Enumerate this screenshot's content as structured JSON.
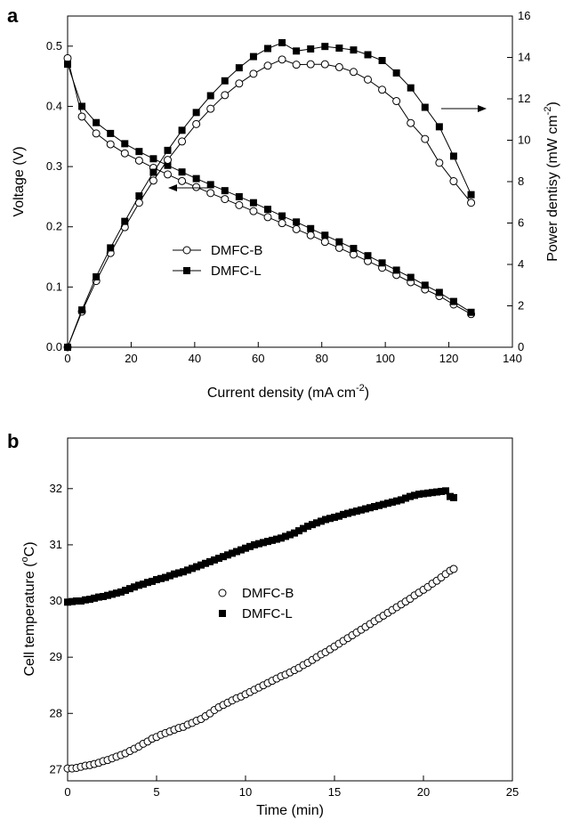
{
  "chart_data": [
    {
      "panel_label": "a",
      "type": "line",
      "xlabel": "Current density (mA cm",
      "xlabel_sup": "-2",
      "xlabel_tail": ")",
      "ylabel": "Voltage (V)",
      "y2label": "Power dentisy (mW cm",
      "y2label_sup": "-2",
      "y2label_tail": ")",
      "xlim": [
        0,
        140
      ],
      "ylim": [
        0,
        0.55
      ],
      "y2lim": [
        0,
        16
      ],
      "x_ticks": [
        "0",
        "20",
        "40",
        "60",
        "80",
        "100",
        "120",
        "140"
      ],
      "y_ticks": [
        "0.0",
        "0.1",
        "0.2",
        "0.3",
        "0.4",
        "0.5"
      ],
      "y2_ticks": [
        "0",
        "2",
        "4",
        "6",
        "8",
        "10",
        "12",
        "14",
        "16"
      ],
      "legend": [
        {
          "name": "DMFC-B",
          "marker": "open-circle"
        },
        {
          "name": "DMFC-L",
          "marker": "filled-square"
        }
      ],
      "legend_position": "center-left",
      "series": [
        {
          "name": "DMFC-B",
          "quantity": "voltage",
          "axis": "left",
          "marker": "open-circle",
          "x": [
            0,
            4.5,
            9,
            13.5,
            18,
            22.5,
            27,
            31.5,
            36,
            40.5,
            45,
            49.5,
            54,
            58.5,
            63,
            67.5,
            72,
            76.5,
            81,
            85.5,
            90,
            94.5,
            99,
            103.5,
            108,
            112.5,
            117,
            121.5,
            127
          ],
          "values": [
            0.48,
            0.383,
            0.355,
            0.337,
            0.322,
            0.31,
            0.298,
            0.287,
            0.276,
            0.266,
            0.256,
            0.246,
            0.236,
            0.226,
            0.216,
            0.206,
            0.196,
            0.186,
            0.175,
            0.165,
            0.154,
            0.143,
            0.132,
            0.12,
            0.108,
            0.096,
            0.085,
            0.071,
            0.055
          ]
        },
        {
          "name": "DMFC-L",
          "quantity": "voltage",
          "axis": "left",
          "marker": "filled-square",
          "x": [
            0,
            4.5,
            9,
            13.5,
            18,
            22.5,
            27,
            31.5,
            36,
            40.5,
            45,
            49.5,
            54,
            58.5,
            63,
            67.5,
            72,
            76.5,
            81,
            85.5,
            90,
            94.5,
            99,
            103.5,
            108,
            112.5,
            117,
            121.5,
            127
          ],
          "values": [
            0.47,
            0.4,
            0.373,
            0.355,
            0.338,
            0.325,
            0.313,
            0.302,
            0.291,
            0.28,
            0.27,
            0.26,
            0.25,
            0.24,
            0.229,
            0.218,
            0.208,
            0.197,
            0.186,
            0.175,
            0.164,
            0.152,
            0.14,
            0.128,
            0.116,
            0.103,
            0.091,
            0.076,
            0.058
          ]
        },
        {
          "name": "DMFC-B",
          "quantity": "power density",
          "axis": "right",
          "marker": "open-circle",
          "x": [
            0,
            4.5,
            9,
            13.5,
            18,
            22.5,
            27,
            31.5,
            36,
            40.5,
            45,
            49.5,
            54,
            58.5,
            63,
            67.5,
            72,
            76.5,
            81,
            85.5,
            90,
            94.5,
            99,
            103.5,
            108,
            112.5,
            117,
            121.5,
            127
          ],
          "values": [
            0,
            1.72,
            3.2,
            4.55,
            5.8,
            6.98,
            8.05,
            9.05,
            9.94,
            10.78,
            11.52,
            12.18,
            12.74,
            13.21,
            13.6,
            13.9,
            13.65,
            13.67,
            13.67,
            13.53,
            13.3,
            12.93,
            12.44,
            11.89,
            10.83,
            10.06,
            8.91,
            8.02,
            6.98
          ]
        },
        {
          "name": "DMFC-L",
          "quantity": "power density",
          "axis": "right",
          "marker": "filled-square",
          "x": [
            0,
            4.5,
            9,
            13.5,
            18,
            22.5,
            27,
            31.5,
            36,
            40.5,
            45,
            49.5,
            54,
            58.5,
            63,
            67.5,
            72,
            76.5,
            81,
            85.5,
            90,
            94.5,
            99,
            103.5,
            108,
            112.5,
            117,
            121.5,
            127
          ],
          "values": [
            0,
            1.8,
            3.4,
            4.8,
            6.08,
            7.31,
            8.45,
            9.51,
            10.48,
            11.34,
            12.15,
            12.87,
            13.5,
            14.04,
            14.43,
            14.71,
            14.31,
            14.41,
            14.53,
            14.45,
            14.36,
            14.13,
            13.85,
            13.25,
            12.53,
            11.59,
            10.65,
            9.23,
            7.37
          ]
        }
      ],
      "annotations": [
        {
          "kind": "arrow",
          "direction": "left",
          "meaning": "points to voltage axis"
        },
        {
          "kind": "arrow",
          "direction": "right",
          "meaning": "points to power density axis"
        }
      ]
    },
    {
      "panel_label": "b",
      "type": "scatter",
      "xlabel": "Time (min)",
      "ylabel": "Cell temperature (",
      "ylabel_sup": "o",
      "ylabel_tail": "C)",
      "xlim": [
        0,
        25
      ],
      "ylim": [
        26.8,
        32.9
      ],
      "x_ticks": [
        "0",
        "5",
        "10",
        "15",
        "20",
        "25"
      ],
      "y_ticks": [
        "27",
        "28",
        "29",
        "30",
        "31",
        "32"
      ],
      "legend": [
        {
          "name": "DMFC-B",
          "marker": "open-circle"
        },
        {
          "name": "DMFC-L",
          "marker": "filled-square"
        }
      ],
      "legend_position": "center",
      "series": [
        {
          "name": "DMFC-B",
          "marker": "open-circle",
          "x": [
            0,
            0.25,
            0.5,
            0.75,
            1.0,
            1.25,
            1.5,
            1.75,
            2.0,
            2.25,
            2.5,
            2.75,
            3.0,
            3.25,
            3.5,
            3.75,
            4.0,
            4.25,
            4.5,
            4.75,
            5.0,
            5.25,
            5.5,
            5.75,
            6.0,
            6.25,
            6.5,
            6.75,
            7.0,
            7.25,
            7.5,
            7.75,
            8.0,
            8.25,
            8.5,
            8.75,
            9.0,
            9.25,
            9.5,
            9.75,
            10.0,
            10.25,
            10.5,
            10.75,
            11.0,
            11.25,
            11.5,
            11.75,
            12.0,
            12.25,
            12.5,
            12.75,
            13.0,
            13.25,
            13.5,
            13.75,
            14.0,
            14.25,
            14.5,
            14.75,
            15.0,
            15.25,
            15.5,
            15.75,
            16.0,
            16.25,
            16.5,
            16.75,
            17.0,
            17.25,
            17.5,
            17.75,
            18.0,
            18.25,
            18.5,
            18.75,
            19.0,
            19.25,
            19.5,
            19.75,
            20.0,
            20.25,
            20.5,
            20.75,
            21.0,
            21.25,
            21.5,
            21.7
          ],
          "values": [
            27.02,
            27.02,
            27.03,
            27.05,
            27.07,
            27.08,
            27.1,
            27.12,
            27.15,
            27.17,
            27.2,
            27.23,
            27.26,
            27.29,
            27.33,
            27.37,
            27.41,
            27.46,
            27.5,
            27.55,
            27.58,
            27.62,
            27.65,
            27.68,
            27.71,
            27.74,
            27.76,
            27.8,
            27.83,
            27.87,
            27.9,
            27.95,
            28.0,
            28.06,
            28.11,
            28.15,
            28.19,
            28.23,
            28.27,
            28.3,
            28.34,
            28.38,
            28.42,
            28.46,
            28.5,
            28.54,
            28.58,
            28.62,
            28.66,
            28.69,
            28.73,
            28.77,
            28.81,
            28.86,
            28.9,
            28.95,
            29.0,
            29.05,
            29.09,
            29.14,
            29.19,
            29.24,
            29.29,
            29.34,
            29.39,
            29.44,
            29.49,
            29.54,
            29.59,
            29.64,
            29.69,
            29.74,
            29.79,
            29.84,
            29.89,
            29.94,
            29.99,
            30.04,
            30.1,
            30.15,
            30.2,
            30.25,
            30.31,
            30.36,
            30.42,
            30.48,
            30.54,
            30.57
          ]
        },
        {
          "name": "DMFC-L",
          "marker": "filled-square",
          "x": [
            0,
            0.25,
            0.5,
            0.75,
            1.0,
            1.25,
            1.5,
            1.75,
            2.0,
            2.25,
            2.5,
            2.75,
            3.0,
            3.25,
            3.5,
            3.75,
            4.0,
            4.25,
            4.5,
            4.75,
            5.0,
            5.25,
            5.5,
            5.75,
            6.0,
            6.25,
            6.5,
            6.75,
            7.0,
            7.25,
            7.5,
            7.75,
            8.0,
            8.25,
            8.5,
            8.75,
            9.0,
            9.25,
            9.5,
            9.75,
            10.0,
            10.25,
            10.5,
            10.75,
            11.0,
            11.25,
            11.5,
            11.75,
            12.0,
            12.25,
            12.5,
            12.75,
            13.0,
            13.25,
            13.5,
            13.75,
            14.0,
            14.25,
            14.5,
            14.75,
            15.0,
            15.25,
            15.5,
            15.75,
            16.0,
            16.25,
            16.5,
            16.75,
            17.0,
            17.25,
            17.5,
            17.75,
            18.0,
            18.25,
            18.5,
            18.75,
            19.0,
            19.25,
            19.5,
            19.75,
            20.0,
            20.25,
            20.5,
            20.75,
            21.0,
            21.25,
            21.5,
            21.7
          ],
          "values": [
            29.98,
            29.99,
            30.0,
            30.0,
            30.02,
            30.03,
            30.05,
            30.07,
            30.08,
            30.1,
            30.12,
            30.14,
            30.16,
            30.19,
            30.22,
            30.25,
            30.28,
            30.3,
            30.33,
            30.35,
            30.38,
            30.4,
            30.42,
            30.45,
            30.48,
            30.5,
            30.52,
            30.55,
            30.58,
            30.61,
            30.64,
            30.67,
            30.7,
            30.73,
            30.76,
            30.79,
            30.82,
            30.85,
            30.88,
            30.91,
            30.94,
            30.97,
            31.0,
            31.02,
            31.04,
            31.06,
            31.08,
            31.1,
            31.12,
            31.15,
            31.18,
            31.21,
            31.25,
            31.29,
            31.33,
            31.36,
            31.39,
            31.42,
            31.45,
            31.47,
            31.49,
            31.51,
            31.54,
            31.56,
            31.58,
            31.6,
            31.62,
            31.64,
            31.66,
            31.68,
            31.7,
            31.72,
            31.74,
            31.76,
            31.78,
            31.8,
            31.83,
            31.86,
            31.88,
            31.9,
            31.91,
            31.92,
            31.93,
            31.94,
            31.95,
            31.96,
            31.86,
            31.84
          ]
        }
      ]
    }
  ]
}
